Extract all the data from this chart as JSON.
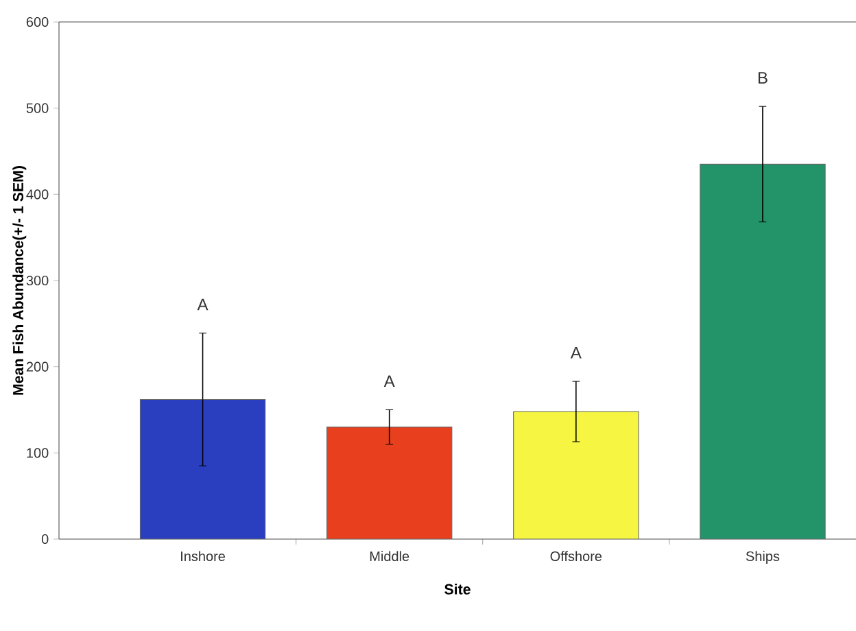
{
  "chart_data": {
    "type": "bar",
    "xlabel": "Site",
    "ylabel": "Mean Fish Abundance(+/- 1 SEM)",
    "categories": [
      "Inshore",
      "Middle",
      "Offshore",
      "Ships"
    ],
    "values": [
      162,
      130,
      148,
      435
    ],
    "errors": [
      77,
      20,
      35,
      67
    ],
    "colors": [
      "#2a3fc0",
      "#e8401e",
      "#f5f542",
      "#23936a"
    ],
    "ylim": [
      0,
      600
    ],
    "yticks": [
      0,
      100,
      200,
      300,
      400,
      500,
      600
    ],
    "annotations": [
      "A",
      "A",
      "A",
      "B"
    ]
  }
}
